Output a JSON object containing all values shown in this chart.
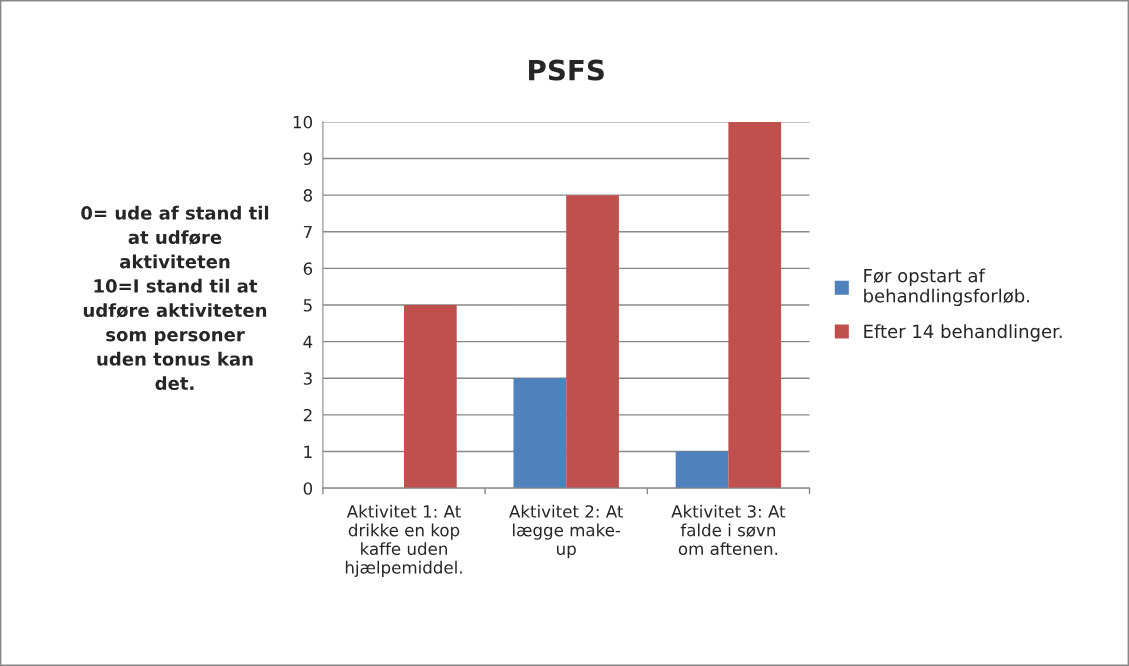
{
  "chart_data": {
    "type": "bar",
    "title": "PSFS",
    "ylabel": "0= ude af stand til\nat udføre\naktiviteten\n10=I stand til at\nudføre aktiviteten\nsom personer\nuden tonus kan\ndet.",
    "categories": [
      "Aktivitet 1: At\ndrikke en kop\nkaffe uden\nhjælpemiddel.",
      "Aktivitet 2: At\nlægge make-\nup",
      "Aktivitet 3: At\nfalde i søvn\nom aftenen."
    ],
    "series": [
      {
        "name": "Før opstart af\nbehandlingsforløb.",
        "color": "#4f81bd",
        "values": [
          0,
          3,
          1
        ]
      },
      {
        "name": "Efter 14 behandlinger.",
        "color": "#c0504d",
        "values": [
          5,
          8,
          10
        ]
      }
    ],
    "ylim": [
      0,
      10
    ],
    "yticks": [
      0,
      1,
      2,
      3,
      4,
      5,
      6,
      7,
      8,
      9,
      10
    ],
    "grid": "y",
    "legend": "right"
  }
}
